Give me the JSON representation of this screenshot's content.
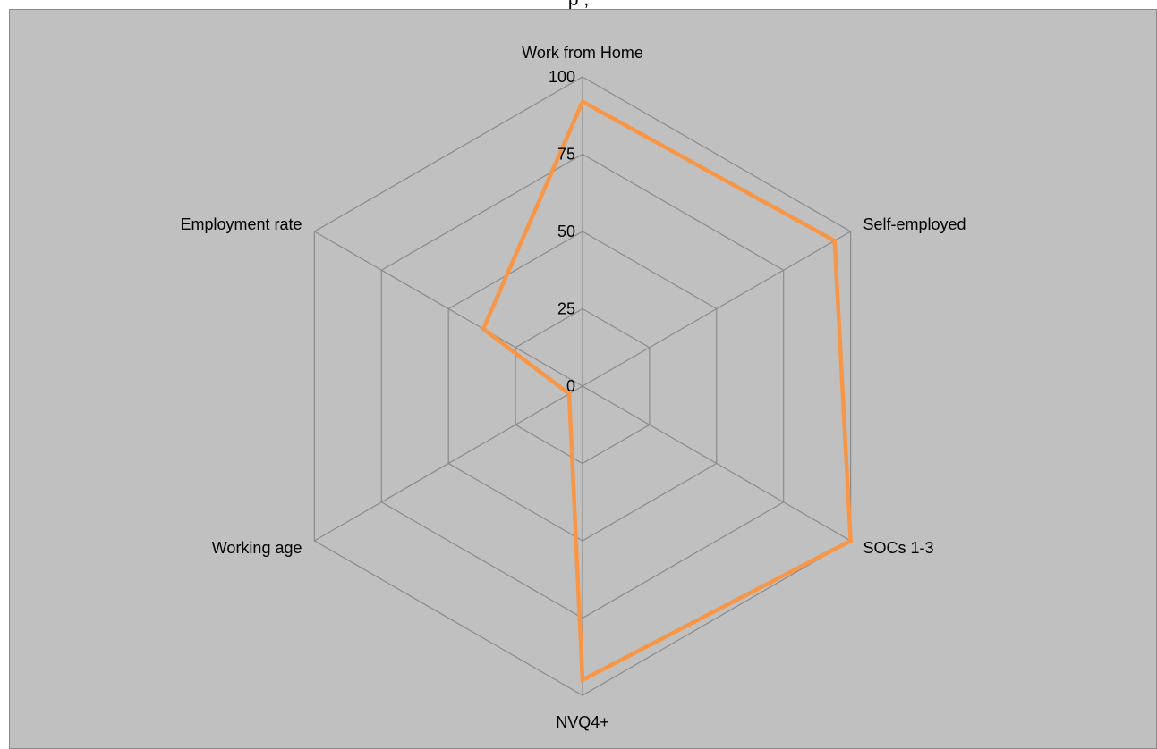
{
  "title_fragment": "p          ,",
  "chart_data": {
    "type": "radar",
    "title": "",
    "categories": [
      "Work from Home",
      "Self-employed",
      "SOCs 1-3",
      "NVQ4+",
      "Working age",
      "Employment rate"
    ],
    "ticks": [
      "0",
      "25",
      "50",
      "75",
      "100"
    ],
    "rmin": 0,
    "rmax": 100,
    "grid": true,
    "series": [
      {
        "values": [
          92,
          94,
          100,
          95,
          5,
          37
        ],
        "color": "#F79646"
      }
    ]
  },
  "colors": {
    "plot_background": "#C0C0C0",
    "gridlines": "#8A8A8A",
    "series_line": "#F79646"
  }
}
